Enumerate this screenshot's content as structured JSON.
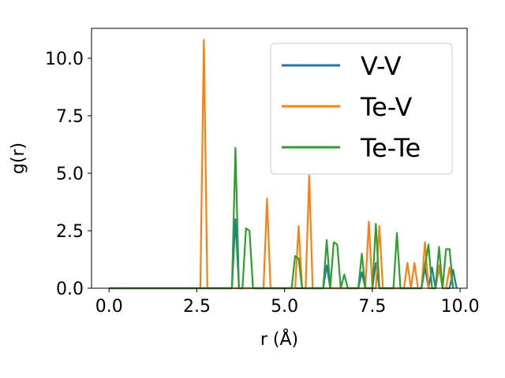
{
  "chart_data": {
    "type": "line",
    "title": "",
    "xlabel": "r (Å)",
    "ylabel": "g(r)",
    "xlim": [
      -0.5,
      10.2
    ],
    "ylim": [
      0.0,
      11.3
    ],
    "xticks": [
      0.0,
      2.5,
      5.0,
      7.5,
      10.0
    ],
    "xtick_labels": [
      "0.0",
      "2.5",
      "5.0",
      "7.5",
      "10.0"
    ],
    "yticks": [
      0.0,
      2.5,
      5.0,
      7.5,
      10.0
    ],
    "ytick_labels": [
      "0.0",
      "2.5",
      "5.0",
      "7.5",
      "10.0"
    ],
    "grid": false,
    "legend_position": "upper right",
    "series": [
      {
        "name": "V-V",
        "color": "#1f77b4",
        "points": [
          [
            0.0,
            0
          ],
          [
            3.5,
            0
          ],
          [
            3.6,
            3.0
          ],
          [
            3.7,
            0
          ],
          [
            6.1,
            0
          ],
          [
            6.2,
            1.0
          ],
          [
            6.3,
            0
          ],
          [
            7.1,
            0
          ],
          [
            7.2,
            0.7
          ],
          [
            7.3,
            0
          ],
          [
            7.5,
            0
          ],
          [
            7.6,
            1.1
          ],
          [
            7.7,
            0
          ],
          [
            8.9,
            0
          ],
          [
            9.0,
            0.9
          ],
          [
            9.1,
            0
          ],
          [
            9.2,
            0.9
          ],
          [
            9.3,
            0
          ],
          [
            9.4,
            0.9
          ],
          [
            9.5,
            0
          ],
          [
            9.7,
            0
          ],
          [
            9.8,
            0.8
          ],
          [
            9.9,
            0
          ]
        ]
      },
      {
        "name": "Te-V",
        "color": "#ff7f0e",
        "points": [
          [
            0.0,
            0
          ],
          [
            2.6,
            0
          ],
          [
            2.7,
            10.8
          ],
          [
            2.8,
            0
          ],
          [
            4.4,
            0
          ],
          [
            4.5,
            3.9
          ],
          [
            4.6,
            0
          ],
          [
            5.3,
            0
          ],
          [
            5.4,
            2.7
          ],
          [
            5.5,
            0
          ],
          [
            5.6,
            0
          ],
          [
            5.7,
            4.9
          ],
          [
            5.8,
            0
          ],
          [
            7.3,
            0
          ],
          [
            7.4,
            2.9
          ],
          [
            7.5,
            0
          ],
          [
            7.6,
            0
          ],
          [
            7.7,
            2.7
          ],
          [
            7.8,
            0
          ],
          [
            8.4,
            0
          ],
          [
            8.5,
            1.1
          ],
          [
            8.6,
            0
          ],
          [
            8.7,
            1.1
          ],
          [
            8.8,
            0
          ],
          [
            8.9,
            0
          ],
          [
            9.0,
            2.0
          ],
          [
            9.1,
            0
          ],
          [
            9.3,
            0
          ],
          [
            9.4,
            1.0
          ],
          [
            9.5,
            0
          ],
          [
            9.6,
            0
          ],
          [
            9.7,
            0.9
          ],
          [
            9.8,
            0
          ]
        ]
      },
      {
        "name": "Te-Te",
        "color": "#2ca02c",
        "points": [
          [
            0.0,
            0
          ],
          [
            3.5,
            0
          ],
          [
            3.6,
            6.1
          ],
          [
            3.7,
            0
          ],
          [
            3.8,
            0
          ],
          [
            3.9,
            2.6
          ],
          [
            4.0,
            2.5
          ],
          [
            4.1,
            0
          ],
          [
            5.2,
            0
          ],
          [
            5.3,
            1.4
          ],
          [
            5.4,
            1.3
          ],
          [
            5.5,
            0
          ],
          [
            6.1,
            0
          ],
          [
            6.2,
            2.1
          ],
          [
            6.3,
            0
          ],
          [
            6.4,
            2.0
          ],
          [
            6.5,
            1.9
          ],
          [
            6.6,
            0
          ],
          [
            6.7,
            0.6
          ],
          [
            6.8,
            0
          ],
          [
            7.1,
            0
          ],
          [
            7.2,
            1.5
          ],
          [
            7.3,
            0
          ],
          [
            7.5,
            0
          ],
          [
            7.6,
            2.8
          ],
          [
            7.7,
            0
          ],
          [
            8.1,
            0
          ],
          [
            8.2,
            2.4
          ],
          [
            8.3,
            0
          ],
          [
            8.9,
            0
          ],
          [
            9.0,
            1.0
          ],
          [
            9.1,
            1.9
          ],
          [
            9.2,
            0
          ],
          [
            9.3,
            0
          ],
          [
            9.4,
            1.8
          ],
          [
            9.5,
            0
          ],
          [
            9.6,
            1.7
          ],
          [
            9.7,
            1.7
          ],
          [
            9.8,
            0
          ]
        ]
      }
    ]
  }
}
